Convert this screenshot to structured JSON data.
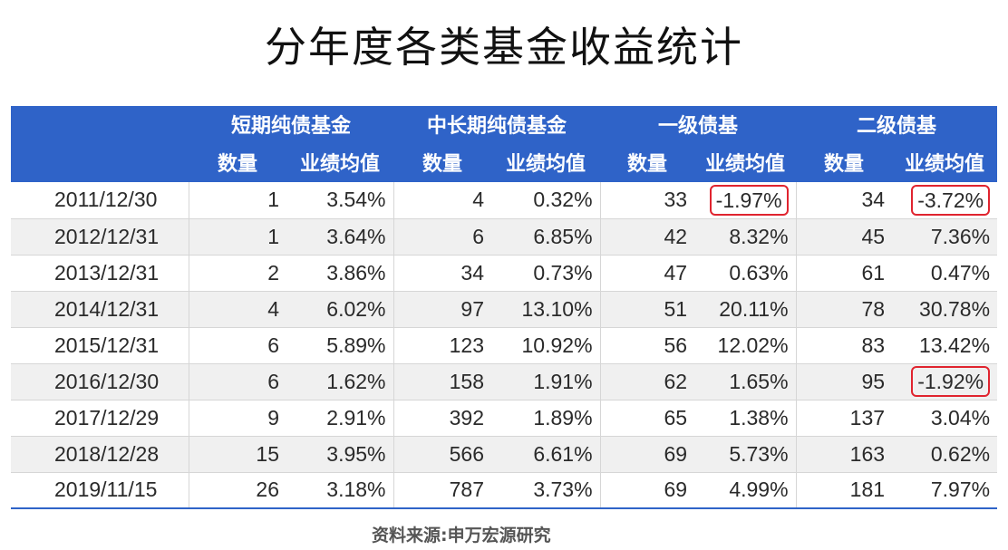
{
  "title": "分年度各类基金收益统计",
  "header": {
    "groups": [
      "短期纯债基金",
      "中长期纯债基金",
      "一级债基",
      "二级债基"
    ],
    "count_label": "数量",
    "perf_label": "业绩均值"
  },
  "rows": [
    {
      "date": "2011/12/30",
      "v": [
        "1",
        "3.54%",
        "4",
        "0.32%",
        "33",
        "-1.97%",
        "34",
        "-3.72%"
      ],
      "highlight": [
        5,
        7
      ]
    },
    {
      "date": "2012/12/31",
      "v": [
        "1",
        "3.64%",
        "6",
        "6.85%",
        "42",
        "8.32%",
        "45",
        "7.36%"
      ],
      "highlight": []
    },
    {
      "date": "2013/12/31",
      "v": [
        "2",
        "3.86%",
        "34",
        "0.73%",
        "47",
        "0.63%",
        "61",
        "0.47%"
      ],
      "highlight": []
    },
    {
      "date": "2014/12/31",
      "v": [
        "4",
        "6.02%",
        "97",
        "13.10%",
        "51",
        "20.11%",
        "78",
        "30.78%"
      ],
      "highlight": []
    },
    {
      "date": "2015/12/31",
      "v": [
        "6",
        "5.89%",
        "123",
        "10.92%",
        "56",
        "12.02%",
        "83",
        "13.42%"
      ],
      "highlight": []
    },
    {
      "date": "2016/12/30",
      "v": [
        "6",
        "1.62%",
        "158",
        "1.91%",
        "62",
        "1.65%",
        "95",
        "-1.92%"
      ],
      "highlight": [
        7
      ]
    },
    {
      "date": "2017/12/29",
      "v": [
        "9",
        "2.91%",
        "392",
        "1.89%",
        "65",
        "1.38%",
        "137",
        "3.04%"
      ],
      "highlight": []
    },
    {
      "date": "2018/12/28",
      "v": [
        "15",
        "3.95%",
        "566",
        "6.61%",
        "69",
        "5.73%",
        "163",
        "0.62%"
      ],
      "highlight": []
    },
    {
      "date": "2019/11/15",
      "v": [
        "26",
        "3.18%",
        "787",
        "3.73%",
        "69",
        "4.99%",
        "181",
        "7.97%"
      ],
      "highlight": []
    }
  ],
  "source": "资料来源:申万宏源研究",
  "colors": {
    "header_bg": "#2f63c8",
    "highlight_border": "#e0242f",
    "stripe": "#f0f0f0"
  }
}
